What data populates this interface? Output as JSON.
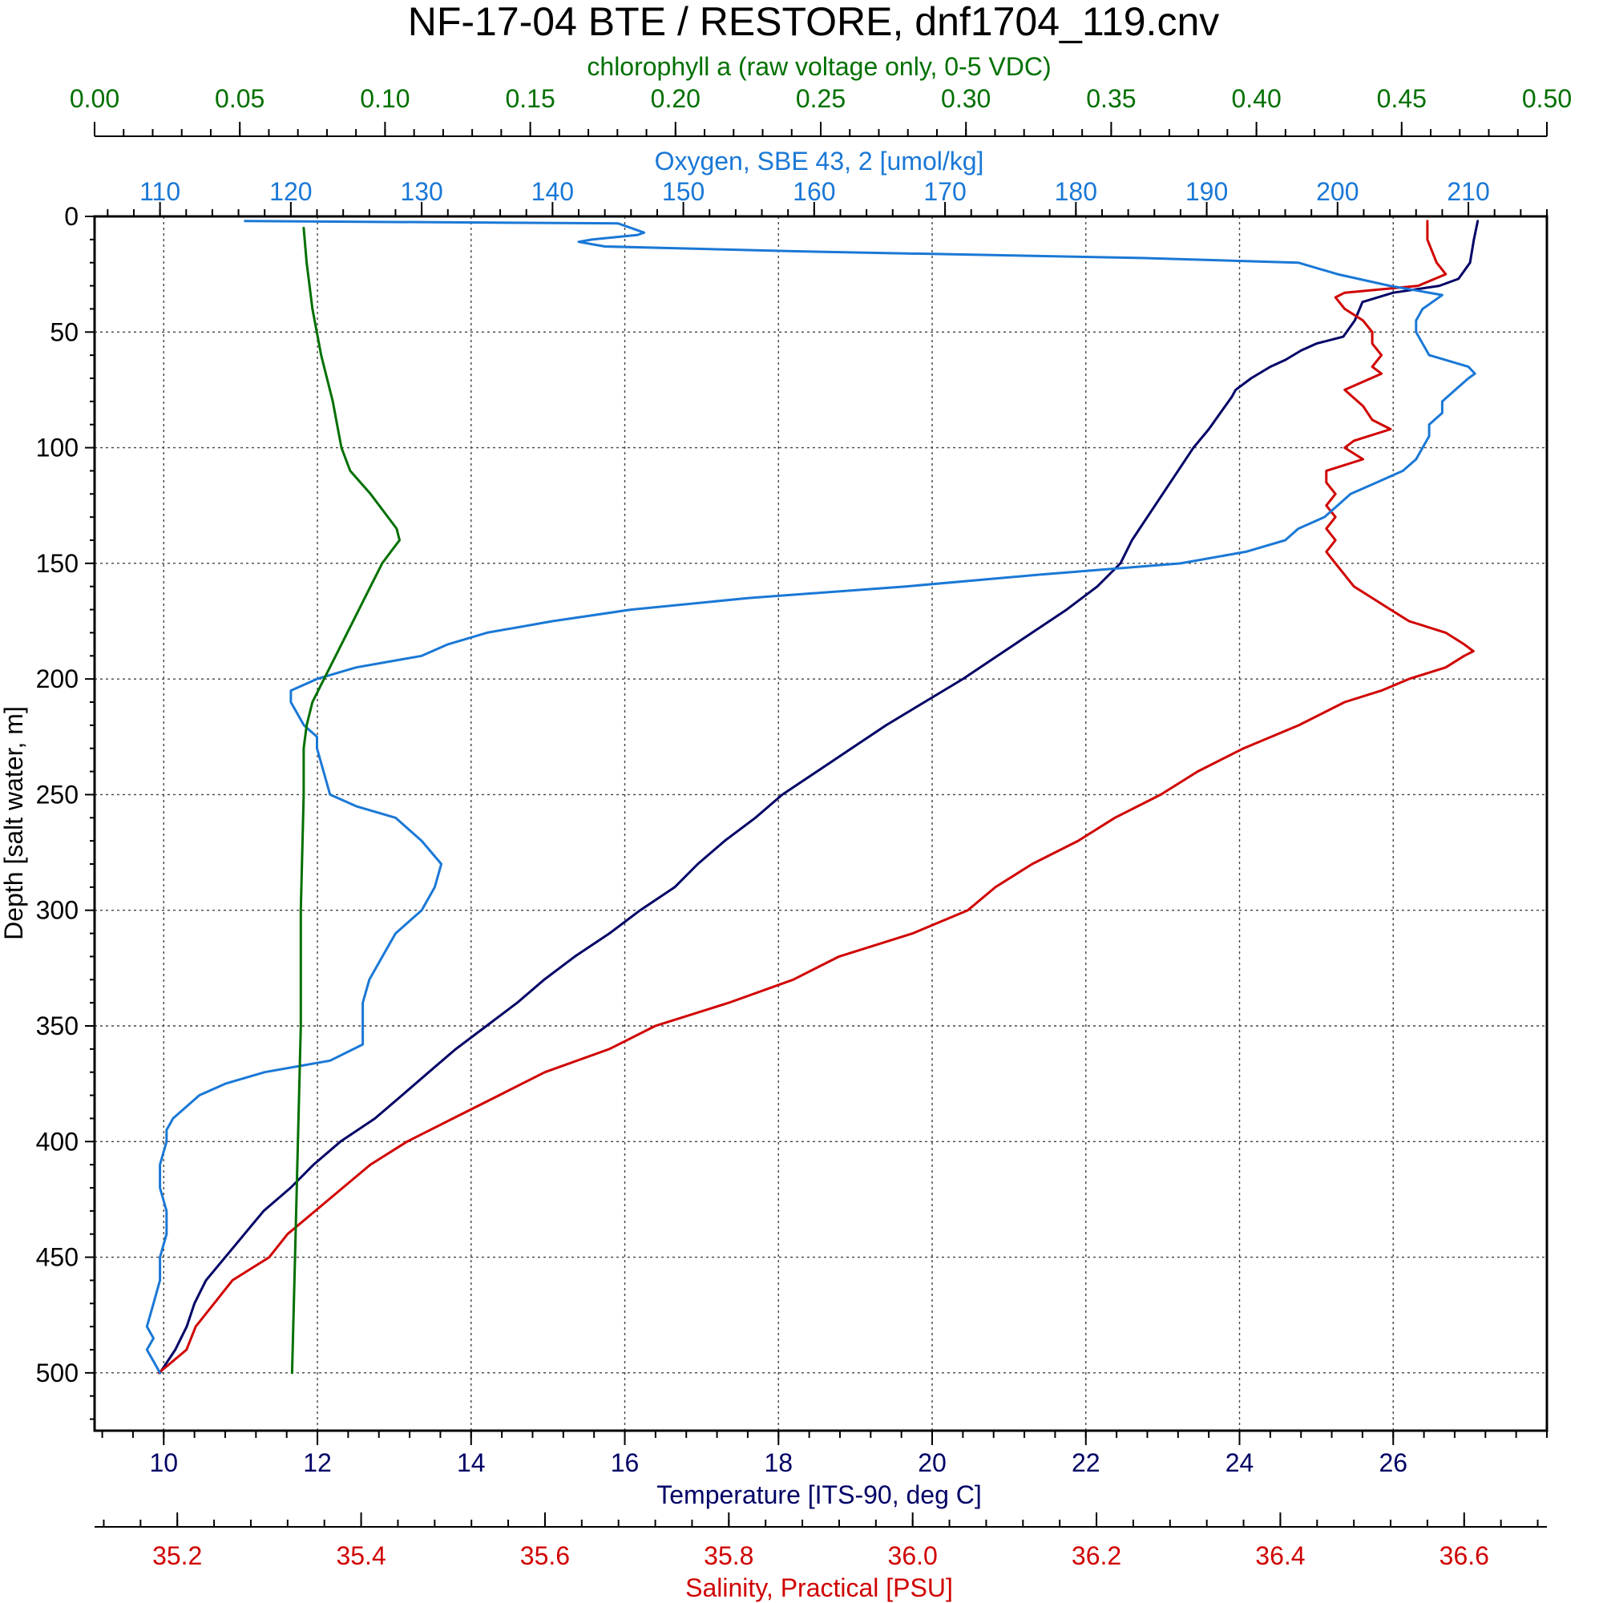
{
  "chart_data": {
    "type": "line",
    "title": "NF-17-04 BTE / RESTORE, dnf1704_119.cnv",
    "y_axis": {
      "label": "Depth [salt water, m]",
      "range": [
        0,
        525
      ],
      "inverted": true,
      "ticks": [
        "0",
        "50",
        "100",
        "150",
        "200",
        "250",
        "300",
        "350",
        "400",
        "450",
        "500"
      ]
    },
    "axes": {
      "chlorophyll": {
        "label": "chlorophyll a (raw voltage only, 0-5 VDC)",
        "position": "top-outer",
        "color": "#007000",
        "range": [
          0,
          0.5
        ],
        "ticks": [
          "0.00",
          "0.05",
          "0.10",
          "0.15",
          "0.20",
          "0.25",
          "0.30",
          "0.35",
          "0.40",
          "0.45",
          "0.50"
        ]
      },
      "oxygen": {
        "label": "Oxygen, SBE 43, 2 [umol/kg]",
        "position": "top-inner",
        "color": "#1a78d6",
        "range": [
          105,
          216
        ],
        "ticks": [
          "110",
          "120",
          "130",
          "140",
          "150",
          "160",
          "170",
          "180",
          "190",
          "200",
          "210"
        ]
      },
      "temperature": {
        "label": "Temperature [ITS-90, deg C]",
        "position": "bottom-inner",
        "color": "#000066",
        "range": [
          9.1,
          28
        ],
        "ticks": [
          "10",
          "12",
          "14",
          "16",
          "18",
          "20",
          "22",
          "24",
          "26"
        ]
      },
      "salinity": {
        "label": "Salinity, Practical [PSU]",
        "position": "bottom-outer",
        "color": "#d00000",
        "range": [
          35.11,
          36.69
        ],
        "ticks": [
          "35.2",
          "35.4",
          "35.6",
          "35.8",
          "36.0",
          "36.2",
          "36.4",
          "36.6"
        ]
      }
    },
    "grid": true,
    "series": [
      {
        "axis": "temperature",
        "color": "#000066",
        "depth": [
          2,
          10,
          20,
          27,
          30,
          33,
          37,
          45,
          52,
          55,
          58,
          62,
          65,
          70,
          75,
          78,
          85,
          92,
          100,
          110,
          120,
          130,
          140,
          150,
          160,
          170,
          180,
          190,
          200,
          210,
          220,
          230,
          240,
          250,
          260,
          270,
          280,
          290,
          300,
          310,
          320,
          330,
          340,
          350,
          360,
          370,
          380,
          390,
          400,
          410,
          420,
          430,
          440,
          450,
          460,
          470,
          480,
          490,
          495,
          500
        ],
        "values": [
          27.1,
          27.05,
          27.0,
          26.85,
          26.6,
          26.0,
          25.6,
          25.5,
          25.35,
          25.0,
          24.8,
          24.6,
          24.4,
          24.15,
          23.95,
          23.9,
          23.75,
          23.6,
          23.4,
          23.2,
          23.0,
          22.8,
          22.6,
          22.45,
          22.15,
          21.75,
          21.3,
          20.85,
          20.4,
          19.9,
          19.4,
          18.95,
          18.5,
          18.05,
          17.7,
          17.3,
          16.95,
          16.65,
          16.2,
          15.8,
          15.35,
          14.95,
          14.6,
          14.2,
          13.8,
          13.45,
          13.1,
          12.75,
          12.3,
          11.95,
          11.65,
          11.3,
          11.05,
          10.8,
          10.55,
          10.4,
          10.3,
          10.15,
          10.05,
          9.95
        ]
      },
      {
        "axis": "salinity",
        "color": "#d00000",
        "depth": [
          2,
          10,
          20,
          25,
          30,
          33,
          35,
          40,
          45,
          50,
          55,
          60,
          65,
          68,
          75,
          82,
          88,
          92,
          97,
          100,
          105,
          110,
          115,
          120,
          125,
          130,
          135,
          140,
          145,
          150,
          155,
          160,
          165,
          170,
          175,
          180,
          185,
          188,
          190,
          195,
          200,
          205,
          210,
          220,
          230,
          240,
          250,
          260,
          270,
          280,
          290,
          300,
          310,
          320,
          330,
          340,
          350,
          360,
          370,
          380,
          390,
          400,
          410,
          420,
          430,
          440,
          450,
          460,
          470,
          480,
          490,
          500
        ],
        "values": [
          36.56,
          36.56,
          36.57,
          36.58,
          36.55,
          36.47,
          36.46,
          36.47,
          36.49,
          36.5,
          36.5,
          36.51,
          36.5,
          36.51,
          36.47,
          36.49,
          36.5,
          36.52,
          36.48,
          36.47,
          36.49,
          36.45,
          36.45,
          36.46,
          36.45,
          36.46,
          36.45,
          36.46,
          36.45,
          36.46,
          36.47,
          36.48,
          36.5,
          36.52,
          36.54,
          36.58,
          36.6,
          36.61,
          36.6,
          36.58,
          36.54,
          36.51,
          36.47,
          36.42,
          36.36,
          36.31,
          36.27,
          36.22,
          36.18,
          36.13,
          36.09,
          36.06,
          36.0,
          35.92,
          35.87,
          35.8,
          35.72,
          35.67,
          35.6,
          35.55,
          35.5,
          35.45,
          35.41,
          35.38,
          35.35,
          35.32,
          35.3,
          35.26,
          35.24,
          35.22,
          35.21,
          35.18
        ]
      },
      {
        "axis": "oxygen",
        "color": "#1a78d6",
        "depth": [
          2,
          3,
          5,
          7,
          8,
          10,
          11,
          12,
          13,
          15,
          18,
          20,
          25,
          30,
          32,
          34,
          38,
          40,
          45,
          50,
          55,
          60,
          65,
          68,
          70,
          75,
          80,
          85,
          90,
          95,
          100,
          105,
          110,
          115,
          120,
          125,
          130,
          135,
          140,
          145,
          150,
          155,
          160,
          165,
          170,
          175,
          180,
          185,
          190,
          195,
          200,
          205,
          210,
          215,
          220,
          225,
          230,
          240,
          250,
          255,
          260,
          270,
          280,
          290,
          300,
          310,
          320,
          330,
          340,
          350,
          358,
          365,
          370,
          375,
          380,
          385,
          390,
          395,
          400,
          410,
          420,
          430,
          440,
          450,
          460,
          470,
          480,
          485,
          490,
          495,
          500
        ],
        "values": [
          116.5,
          145,
          146,
          147,
          146.5,
          143,
          142,
          143,
          144,
          158,
          185,
          197,
          200,
          204,
          206,
          208,
          207,
          206.5,
          206,
          206,
          206.5,
          207,
          210,
          210.5,
          210,
          209,
          208,
          208,
          207,
          207,
          206.5,
          206,
          205,
          203,
          201,
          200,
          199,
          197,
          196,
          193,
          188,
          177,
          167,
          155,
          146,
          140,
          135,
          132,
          130,
          125,
          122,
          120,
          120,
          120.5,
          121,
          122,
          122,
          122.5,
          123,
          125,
          128,
          130,
          131.5,
          131,
          130,
          128,
          127,
          126,
          125.5,
          125.5,
          125.5,
          123,
          118,
          115,
          113,
          112,
          111,
          110.5,
          110.5,
          110,
          110,
          110.5,
          110.5,
          110,
          110,
          109.5,
          109,
          109.5,
          109,
          109.5,
          110
        ]
      },
      {
        "axis": "chlorophyll",
        "color": "#007000",
        "depth": [
          5,
          20,
          40,
          60,
          80,
          100,
          110,
          120,
          130,
          135,
          140,
          145,
          150,
          160,
          170,
          180,
          190,
          200,
          210,
          220,
          230,
          250,
          300,
          350,
          400,
          450,
          500
        ],
        "values": [
          0.072,
          0.073,
          0.075,
          0.078,
          0.082,
          0.085,
          0.088,
          0.095,
          0.101,
          0.104,
          0.105,
          0.102,
          0.099,
          0.095,
          0.091,
          0.087,
          0.083,
          0.079,
          0.075,
          0.073,
          0.072,
          0.072,
          0.071,
          0.071,
          0.07,
          0.069,
          0.068
        ]
      }
    ]
  }
}
